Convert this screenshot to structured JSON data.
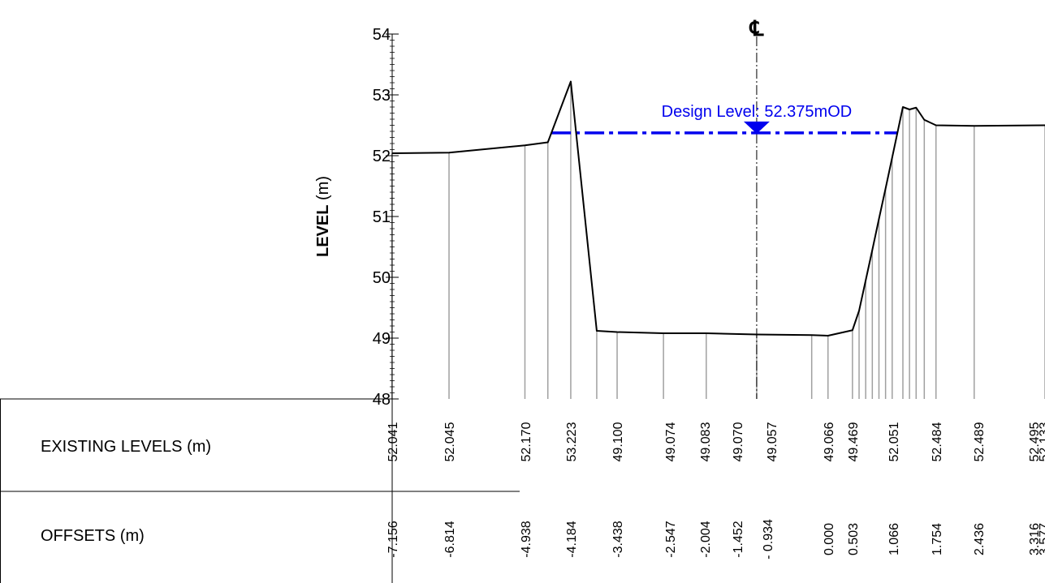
{
  "chart_data": {
    "type": "line",
    "y_label": "LEVEL",
    "y_unit": "(m)",
    "centerline_symbol": "℄",
    "centerline_x": 0,
    "design_level": {
      "value": 52.375,
      "label": "Design Level: 52.375mOD"
    },
    "x": [
      -7.16,
      -6.04,
      -4.55,
      -4.1,
      -3.65,
      -3.14,
      -2.74,
      -1.83,
      -0.99,
      0,
      1.08,
      1.4,
      1.88,
      2.01,
      2.14,
      2.27,
      2.4,
      2.53,
      2.66,
      2.87,
      3.0,
      3.13,
      3.29,
      3.52,
      4.27,
      5.66
    ],
    "values": [
      52.04,
      52.05,
      52.17,
      52.22,
      53.22,
      49.12,
      49.1,
      49.08,
      49.08,
      49.06,
      49.05,
      49.04,
      49.13,
      49.45,
      49.95,
      50.45,
      50.96,
      51.46,
      51.97,
      52.8,
      52.76,
      52.79,
      52.59,
      52.5,
      52.49,
      52.5
    ],
    "color": "#000000",
    "drop_color": "#a0a0a0",
    "design_color": "#0000ee",
    "xlim": [
      -7.156,
      5.66
    ],
    "ylim": [
      48,
      54
    ],
    "yticks": [
      48,
      49,
      50,
      51,
      52,
      53,
      54
    ],
    "minor_step": 0.1
  },
  "table": {
    "rows": [
      {
        "label": "EXISTING LEVELS (m)",
        "cells": [
          "52.041",
          "52.045",
          "52.170",
          "53.223",
          "49.100",
          "49.074",
          "49.083",
          "49.070",
          "49.057",
          "49.066",
          "49.469",
          "52.051",
          "52.484",
          "52.489",
          "52.495",
          "52.133"
        ]
      },
      {
        "label": "OFFSETS (m)",
        "cells": [
          "-7.156",
          "-6.814",
          "-4.938",
          "-4.184",
          "-3.438",
          "-2.547",
          "-2.004",
          "-1.452",
          "- 0.934",
          "0.000",
          "0.503",
          "1.066",
          "1.754",
          "2.436",
          "3.316",
          "3.577"
        ]
      }
    ]
  }
}
